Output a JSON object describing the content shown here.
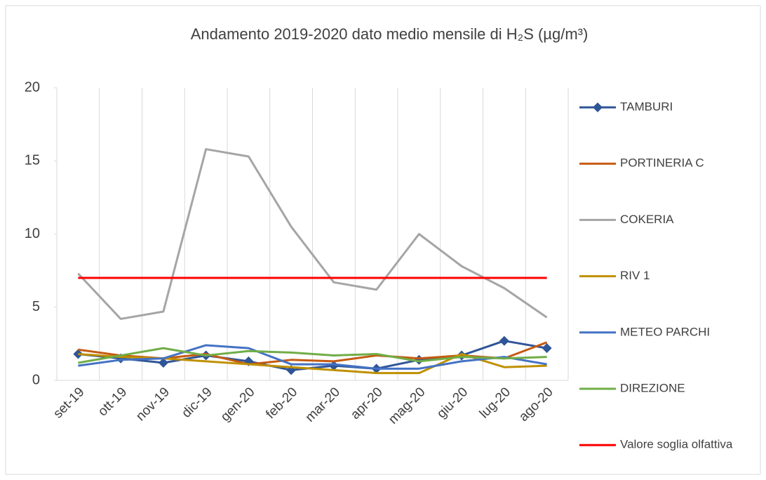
{
  "chart_data": {
    "type": "line",
    "title": "Andamento 2019-2020 dato medio mensile di H₂S (µg/m³)",
    "categories": [
      "set-19",
      "ott-19",
      "nov-19",
      "dic-19",
      "gen-20",
      "feb-20",
      "mar-20",
      "apr-20",
      "mag-20",
      "giu-20",
      "lug-20",
      "ago-20"
    ],
    "ylim": [
      0,
      20
    ],
    "yticks": [
      0,
      5,
      10,
      15,
      20
    ],
    "legend": "right",
    "series": [
      {
        "name": "TAMBURI",
        "color": "#2f5597",
        "marker": "diamond",
        "values": [
          1.8,
          1.5,
          1.2,
          1.7,
          1.3,
          0.7,
          1.0,
          0.8,
          1.4,
          1.7,
          2.7,
          2.2
        ]
      },
      {
        "name": "PORTINERIA C",
        "color": "#c55a11",
        "values": [
          2.1,
          1.7,
          1.5,
          1.8,
          1.1,
          1.4,
          1.3,
          1.7,
          1.5,
          1.7,
          1.5,
          2.6
        ]
      },
      {
        "name": "COKERIA",
        "color": "#a5a5a5",
        "values": [
          7.3,
          4.2,
          4.7,
          15.8,
          15.3,
          10.5,
          6.7,
          6.2,
          10.0,
          7.8,
          6.3,
          4.3
        ]
      },
      {
        "name": "RIV 1",
        "color": "#bf9000",
        "values": [
          1.8,
          1.6,
          1.5,
          1.3,
          1.1,
          0.9,
          0.7,
          0.5,
          0.5,
          1.8,
          0.9,
          1.0
        ]
      },
      {
        "name": "METEO PARCHI",
        "color": "#4472c4",
        "values": [
          1.0,
          1.4,
          1.5,
          2.4,
          2.2,
          1.1,
          1.1,
          0.8,
          0.8,
          1.3,
          1.6,
          1.1
        ]
      },
      {
        "name": "DIREZIONE",
        "color": "#70ad47",
        "values": [
          1.2,
          1.7,
          2.2,
          1.7,
          2.0,
          1.9,
          1.7,
          1.8,
          1.3,
          1.6,
          1.5,
          1.6
        ]
      },
      {
        "name": "Valore soglia olfattiva",
        "color": "#ff0000",
        "values": [
          7,
          7,
          7,
          7,
          7,
          7,
          7,
          7,
          7,
          7,
          7,
          7
        ]
      }
    ]
  }
}
